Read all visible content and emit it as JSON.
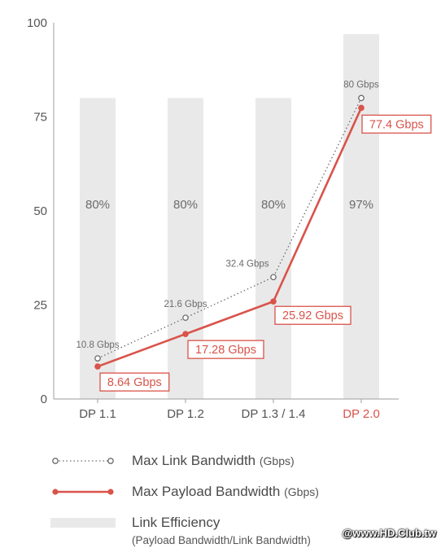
{
  "chart_data": {
    "type": "bar+line",
    "categories": [
      "DP 1.1",
      "DP 1.2",
      "DP 1.3 / 1.4",
      "DP 2.0"
    ],
    "highlight_category": "DP 2.0",
    "ylim": [
      0,
      100
    ],
    "yticks": [
      "0",
      "25",
      "50",
      "75",
      "100"
    ],
    "bars": {
      "name": "Link Efficiency",
      "values": [
        80,
        80,
        80,
        97
      ],
      "labels": [
        "80%",
        "80%",
        "80%",
        "97%"
      ]
    },
    "series": [
      {
        "name": "Max Link Bandwidth",
        "style": "dotted",
        "values": [
          10.8,
          21.6,
          32.4,
          80
        ],
        "labels": [
          "10.8 Gbps",
          "21.6 Gbps",
          "32.4 Gbps",
          "80 Gbps"
        ]
      },
      {
        "name": "Max Payload Bandwidth",
        "style": "solid",
        "values": [
          8.64,
          17.28,
          25.92,
          77.4
        ],
        "labels": [
          "8.64 Gbps",
          "17.28 Gbps",
          "25.92 Gbps",
          "77.4 Gbps"
        ]
      }
    ],
    "colors": {
      "bar": "#e9e9e9",
      "link": "#6b6b6b",
      "payload": "#d9534a",
      "axis": "#9e9e9e",
      "highlight_label": "#d9534a"
    }
  },
  "legend": {
    "link": {
      "label": "Max Link Bandwidth",
      "unit": "(Gbps)"
    },
    "payload": {
      "label": "Max Payload Bandwidth",
      "unit": "(Gbps)"
    },
    "efficiency": {
      "label": "Link Efficiency",
      "sub": "(Payload Bandwidth/Link Bandwidth)"
    }
  },
  "watermark": "@www.HD.Club.tw"
}
